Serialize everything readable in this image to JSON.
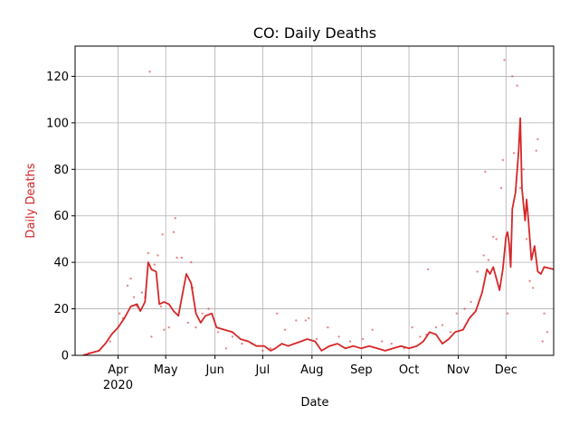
{
  "chart_data": {
    "type": "line",
    "title": "CO: Daily Deaths",
    "xlabel": "Date",
    "ylabel": "Daily Deaths",
    "ylabel_color": "#d62728",
    "series_color": "#d62728",
    "grid": true,
    "xlim": [
      "2020-03-05",
      "2020-12-31"
    ],
    "ylim": [
      0,
      133
    ],
    "yticks": [
      0,
      20,
      40,
      60,
      80,
      100,
      120
    ],
    "xticks": [
      {
        "date": "2020-04-01",
        "label": "Apr",
        "sublabel": "2020"
      },
      {
        "date": "2020-05-01",
        "label": "May",
        "sublabel": ""
      },
      {
        "date": "2020-06-01",
        "label": "Jun",
        "sublabel": ""
      },
      {
        "date": "2020-07-01",
        "label": "Jul",
        "sublabel": ""
      },
      {
        "date": "2020-08-01",
        "label": "Aug",
        "sublabel": ""
      },
      {
        "date": "2020-09-01",
        "label": "Sep",
        "sublabel": ""
      },
      {
        "date": "2020-10-01",
        "label": "Oct",
        "sublabel": ""
      },
      {
        "date": "2020-11-01",
        "label": "Nov",
        "sublabel": ""
      },
      {
        "date": "2020-12-01",
        "label": "Dec",
        "sublabel": ""
      }
    ],
    "rolling_average": [
      [
        "2020-03-10",
        0
      ],
      [
        "2020-03-15",
        1
      ],
      [
        "2020-03-20",
        2
      ],
      [
        "2020-03-24",
        5
      ],
      [
        "2020-03-28",
        9
      ],
      [
        "2020-04-01",
        12
      ],
      [
        "2020-04-05",
        16
      ],
      [
        "2020-04-09",
        21
      ],
      [
        "2020-04-13",
        22
      ],
      [
        "2020-04-15",
        19
      ],
      [
        "2020-04-18",
        23
      ],
      [
        "2020-04-20",
        40
      ],
      [
        "2020-04-22",
        37
      ],
      [
        "2020-04-25",
        36
      ],
      [
        "2020-04-27",
        22
      ],
      [
        "2020-04-30",
        23
      ],
      [
        "2020-05-03",
        22
      ],
      [
        "2020-05-06",
        19
      ],
      [
        "2020-05-09",
        17
      ],
      [
        "2020-05-12",
        28
      ],
      [
        "2020-05-14",
        35
      ],
      [
        "2020-05-17",
        31
      ],
      [
        "2020-05-20",
        18
      ],
      [
        "2020-05-23",
        14
      ],
      [
        "2020-05-26",
        17
      ],
      [
        "2020-05-30",
        18
      ],
      [
        "2020-06-02",
        12
      ],
      [
        "2020-06-07",
        11
      ],
      [
        "2020-06-12",
        10
      ],
      [
        "2020-06-17",
        7
      ],
      [
        "2020-06-22",
        6
      ],
      [
        "2020-06-27",
        4
      ],
      [
        "2020-07-02",
        4
      ],
      [
        "2020-07-06",
        2
      ],
      [
        "2020-07-09",
        3
      ],
      [
        "2020-07-13",
        5
      ],
      [
        "2020-07-17",
        4
      ],
      [
        "2020-07-21",
        5
      ],
      [
        "2020-07-25",
        6
      ],
      [
        "2020-07-29",
        7
      ],
      [
        "2020-08-03",
        6
      ],
      [
        "2020-08-07",
        2
      ],
      [
        "2020-08-12",
        4
      ],
      [
        "2020-08-17",
        5
      ],
      [
        "2020-08-22",
        3
      ],
      [
        "2020-08-27",
        4
      ],
      [
        "2020-09-01",
        3
      ],
      [
        "2020-09-06",
        4
      ],
      [
        "2020-09-11",
        3
      ],
      [
        "2020-09-16",
        2
      ],
      [
        "2020-09-21",
        3
      ],
      [
        "2020-09-26",
        4
      ],
      [
        "2020-10-01",
        3
      ],
      [
        "2020-10-06",
        4
      ],
      [
        "2020-10-10",
        6
      ],
      [
        "2020-10-14",
        10
      ],
      [
        "2020-10-18",
        9
      ],
      [
        "2020-10-22",
        5
      ],
      [
        "2020-10-26",
        7
      ],
      [
        "2020-10-30",
        10
      ],
      [
        "2020-11-04",
        11
      ],
      [
        "2020-11-08",
        16
      ],
      [
        "2020-11-12",
        19
      ],
      [
        "2020-11-16",
        27
      ],
      [
        "2020-11-19",
        37
      ],
      [
        "2020-11-21",
        35
      ],
      [
        "2020-11-23",
        38
      ],
      [
        "2020-11-25",
        33
      ],
      [
        "2020-11-27",
        28
      ],
      [
        "2020-11-29",
        37
      ],
      [
        "2020-12-01",
        51
      ],
      [
        "2020-12-02",
        53
      ],
      [
        "2020-12-03",
        48
      ],
      [
        "2020-12-04",
        38
      ],
      [
        "2020-12-05",
        63
      ],
      [
        "2020-12-07",
        70
      ],
      [
        "2020-12-09",
        88
      ],
      [
        "2020-12-10",
        102
      ],
      [
        "2020-12-11",
        72
      ],
      [
        "2020-12-13",
        58
      ],
      [
        "2020-12-14",
        67
      ],
      [
        "2020-12-15",
        59
      ],
      [
        "2020-12-17",
        41
      ],
      [
        "2020-12-19",
        47
      ],
      [
        "2020-12-21",
        36
      ],
      [
        "2020-12-23",
        35
      ],
      [
        "2020-12-25",
        38
      ],
      [
        "2020-12-31",
        37
      ]
    ],
    "daily_values": [
      [
        "2020-03-14",
        1
      ],
      [
        "2020-03-20",
        2
      ],
      [
        "2020-03-27",
        6
      ],
      [
        "2020-04-02",
        18
      ],
      [
        "2020-04-04",
        16
      ],
      [
        "2020-04-07",
        30
      ],
      [
        "2020-04-09",
        33
      ],
      [
        "2020-04-11",
        25
      ],
      [
        "2020-04-13",
        21
      ],
      [
        "2020-04-16",
        27
      ],
      [
        "2020-04-18",
        25
      ],
      [
        "2020-04-20",
        44
      ],
      [
        "2020-04-21",
        122
      ],
      [
        "2020-04-22",
        8
      ],
      [
        "2020-04-24",
        39
      ],
      [
        "2020-04-26",
        43
      ],
      [
        "2020-04-28",
        21
      ],
      [
        "2020-04-29",
        52
      ],
      [
        "2020-04-30",
        11
      ],
      [
        "2020-05-03",
        12
      ],
      [
        "2020-05-06",
        53
      ],
      [
        "2020-05-07",
        59
      ],
      [
        "2020-05-08",
        42
      ],
      [
        "2020-05-11",
        42
      ],
      [
        "2020-05-15",
        14
      ],
      [
        "2020-05-17",
        40
      ],
      [
        "2020-05-18",
        29
      ],
      [
        "2020-05-20",
        12
      ],
      [
        "2020-05-24",
        18
      ],
      [
        "2020-05-28",
        20
      ],
      [
        "2020-06-03",
        10
      ],
      [
        "2020-06-08",
        3
      ],
      [
        "2020-06-12",
        8
      ],
      [
        "2020-06-18",
        5
      ],
      [
        "2020-06-24",
        5
      ],
      [
        "2020-07-01",
        2
      ],
      [
        "2020-07-06",
        3
      ],
      [
        "2020-07-10",
        18
      ],
      [
        "2020-07-15",
        11
      ],
      [
        "2020-07-22",
        15
      ],
      [
        "2020-07-28",
        15
      ],
      [
        "2020-07-30",
        16
      ],
      [
        "2020-08-04",
        7
      ],
      [
        "2020-08-11",
        12
      ],
      [
        "2020-08-18",
        8
      ],
      [
        "2020-08-25",
        6
      ],
      [
        "2020-09-02",
        7
      ],
      [
        "2020-09-08",
        11
      ],
      [
        "2020-09-14",
        6
      ],
      [
        "2020-09-20",
        5
      ],
      [
        "2020-09-28",
        3
      ],
      [
        "2020-10-03",
        12
      ],
      [
        "2020-10-08",
        8
      ],
      [
        "2020-10-12",
        9
      ],
      [
        "2020-10-13",
        37
      ],
      [
        "2020-10-18",
        12
      ],
      [
        "2020-10-22",
        13
      ],
      [
        "2020-10-27",
        10
      ],
      [
        "2020-10-31",
        18
      ],
      [
        "2020-11-05",
        20
      ],
      [
        "2020-11-09",
        23
      ],
      [
        "2020-11-13",
        36
      ],
      [
        "2020-11-17",
        43
      ],
      [
        "2020-11-18",
        79
      ],
      [
        "2020-11-20",
        41
      ],
      [
        "2020-11-23",
        51
      ],
      [
        "2020-11-25",
        50
      ],
      [
        "2020-11-28",
        72
      ],
      [
        "2020-11-29",
        84
      ],
      [
        "2020-11-30",
        127
      ],
      [
        "2020-12-02",
        18
      ],
      [
        "2020-12-05",
        120
      ],
      [
        "2020-12-06",
        87
      ],
      [
        "2020-12-08",
        116
      ],
      [
        "2020-12-10",
        72
      ],
      [
        "2020-12-12",
        80
      ],
      [
        "2020-12-14",
        50
      ],
      [
        "2020-12-16",
        32
      ],
      [
        "2020-12-18",
        29
      ],
      [
        "2020-12-20",
        88
      ],
      [
        "2020-12-21",
        93
      ],
      [
        "2020-12-24",
        6
      ],
      [
        "2020-12-25",
        18
      ],
      [
        "2020-12-27",
        10
      ]
    ]
  }
}
